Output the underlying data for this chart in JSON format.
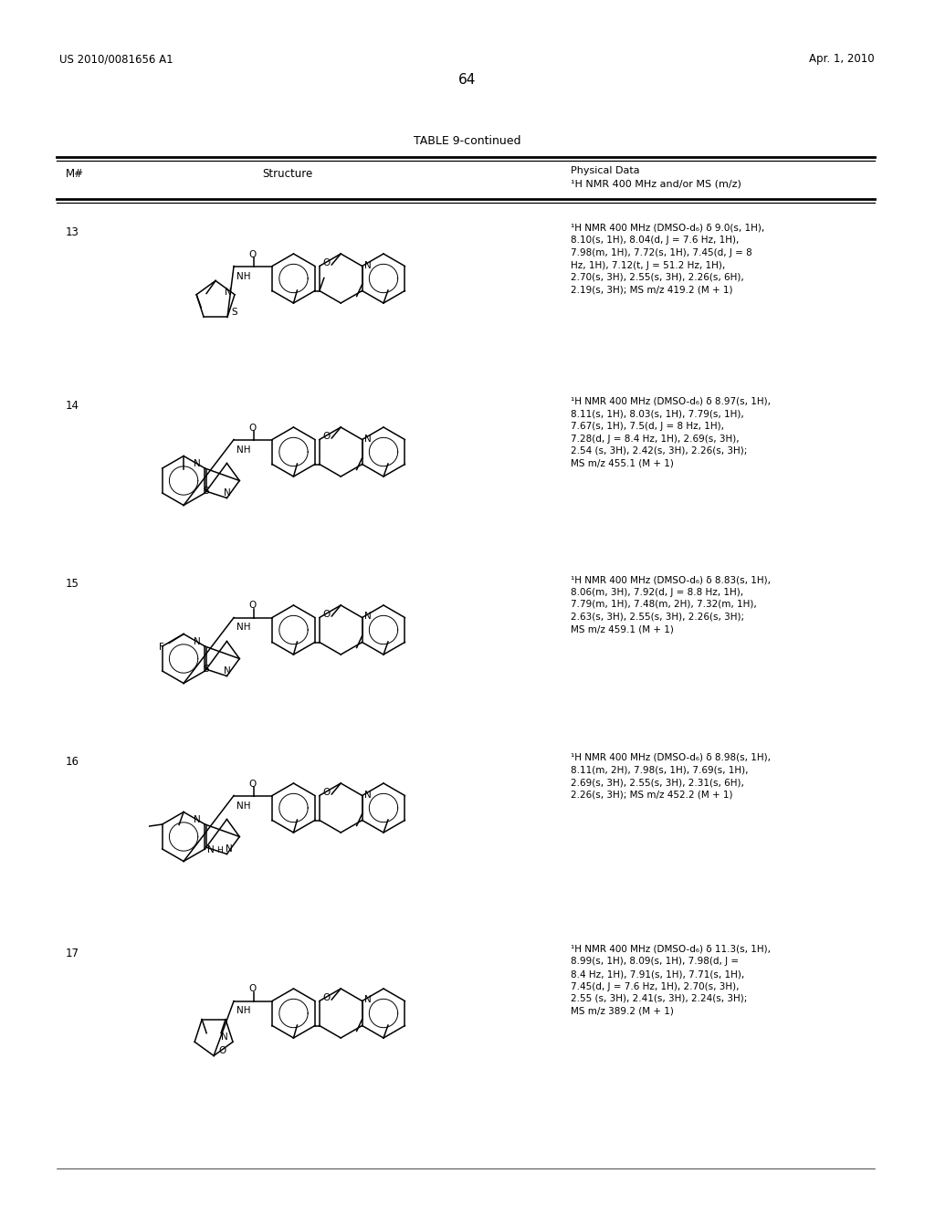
{
  "patent_number": "US 2010/0081656 A1",
  "patent_date": "Apr. 1, 2010",
  "page_number": "64",
  "table_title": "TABLE 9-continued",
  "col1": "M#",
  "col2": "Structure",
  "col3_line1": "Physical Data",
  "col3_line2": "¹H NMR 400 MHz and/or MS (m/z)",
  "rows": [
    {
      "m_num": "13",
      "nmr": "¹H NMR 400 MHz (DMSO-d₆) δ 9.0(s, 1H), 8.10(s, 1H), 8.04(d, J = 7.6 Hz, 1H), 7.98(m, 1H), 7.72(s, 1H), 7.45(d, J = 8 Hz, 1H), 7.12(t, J = 51.2 Hz, 1H), 2.70(s, 3H), 2.55(s, 3H), 2.26(s, 6H), 2.19(s, 3H); MS m/z 419.2 (M + 1)"
    },
    {
      "m_num": "14",
      "nmr": "¹H NMR 400 MHz (DMSO-d₆) δ 8.97(s, 1H), 8.11(s, 1H), 8.03(s, 1H), 7.79(s, 1H), 7.67(s, 1H), 7.5(d, J = 8 Hz, 1H), 7.28(d, J = 8.4 Hz, 1H), 2.69(s, 3H), 2.54 (s, 3H), 2.42(s, 3H), 2.26(s, 3H); MS m/z 455.1 (M + 1)"
    },
    {
      "m_num": "15",
      "nmr": "¹H NMR 400 MHz (DMSO-d₆) δ 8.83(s, 1H), 8.06(m, 3H), 7.92(d, J = 8.8 Hz, 1H), 7.79(m, 1H), 7.48(m, 2H), 7.32(m, 1H), 2.63(s, 3H), 2.55(s, 3H), 2.26(s, 3H); MS m/z 459.1 (M + 1)"
    },
    {
      "m_num": "16",
      "nmr": "¹H NMR 400 MHz (DMSO-d₆) δ 8.98(s, 1H), 8.11(m, 2H), 7.98(s, 1H), 7.69(s, 1H), 2.69(s, 3H), 2.55(s, 3H), 2.31(s, 6H), 2.26(s, 3H); MS m/z 452.2 (M + 1)"
    },
    {
      "m_num": "17",
      "nmr": "¹H NMR 400 MHz (DMSO-d₆) δ 11.3(s, 1H), 8.99(s, 1H), 8.09(s, 1H), 7.98(d, J = 8.4 Hz, 1H), 7.91(s, 1H), 7.71(s, 1H), 7.45(d, J = 7.6 Hz, 1H), 2.70(s, 3H), 2.55 (s, 3H), 2.41(s, 3H), 2.24(s, 3H); MS m/z 389.2 (M + 1)"
    }
  ],
  "bg_color": "#ffffff",
  "text_color": "#000000",
  "row_y_centers": [
    310,
    500,
    695,
    890,
    1115
  ],
  "row_y_tops": [
    240,
    430,
    625,
    820,
    1030
  ]
}
